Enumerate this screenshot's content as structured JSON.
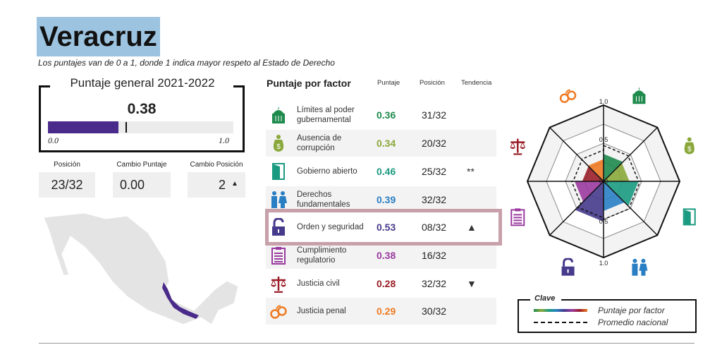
{
  "header": {
    "title": "Veracruz",
    "subtitle": "Los puntajes van de 0 a 1, donde 1 indica mayor respeto al Estado de Derecho"
  },
  "general": {
    "title": "Puntaje general 2021-2022",
    "score": "0.38",
    "score_value": 0.38,
    "national_marker": 0.42,
    "min_label": "0.0",
    "max_label": "1.0"
  },
  "stats": [
    {
      "label": "Posición",
      "value": "23/32"
    },
    {
      "label": "Cambio Puntaje",
      "value": "0.00"
    },
    {
      "label": "Cambio Posición",
      "value": "2",
      "trend": "▲"
    }
  ],
  "factors": {
    "title": "Puntaje por factor",
    "columns": [
      "Puntaje",
      "Posición",
      "Tendencia"
    ],
    "rows": [
      {
        "name": "Límites al poder gubernamental",
        "score": "0.36",
        "position": "31/32",
        "trend": "",
        "color": "#1e8a4c",
        "icon": "capitol-icon"
      },
      {
        "name": "Ausencia de corrupción",
        "score": "0.34",
        "position": "20/32",
        "trend": "",
        "color": "#8aa83a",
        "icon": "money-bag-icon"
      },
      {
        "name": "Gobierno abierto",
        "score": "0.46",
        "position": "25/32",
        "trend": "**",
        "color": "#1a9a80",
        "icon": "door-icon"
      },
      {
        "name": "Derechos fundamentales",
        "score": "0.39",
        "position": "32/32",
        "trend": "",
        "color": "#2a7fc4",
        "icon": "people-icon"
      },
      {
        "name": "Orden y seguridad",
        "score": "0.53",
        "position": "08/32",
        "trend": "▲",
        "color": "#463a8c",
        "icon": "padlock-icon"
      },
      {
        "name": "Cumplimiento regulatorio",
        "score": "0.38",
        "position": "16/32",
        "trend": "",
        "color": "#9a3aa0",
        "icon": "clipboard-icon"
      },
      {
        "name": "Justicia civil",
        "score": "0.28",
        "position": "32/32",
        "trend": "▼",
        "color": "#9a1e28",
        "icon": "scales-icon"
      },
      {
        "name": "Justicia penal",
        "score": "0.29",
        "position": "30/32",
        "trend": "",
        "color": "#ee7a22",
        "icon": "handcuffs-icon"
      }
    ]
  },
  "chart_data": {
    "type": "radar",
    "categories": [
      "Límites al poder gubernamental",
      "Ausencia de corrupción",
      "Gobierno abierto",
      "Derechos fundamentales",
      "Orden y seguridad",
      "Cumplimiento regulatorio",
      "Justicia civil",
      "Justicia penal"
    ],
    "series": [
      {
        "name": "Puntaje por factor",
        "values": [
          0.36,
          0.34,
          0.46,
          0.39,
          0.53,
          0.38,
          0.28,
          0.29
        ]
      },
      {
        "name": "Promedio nacional",
        "values": [
          0.47,
          0.46,
          0.48,
          0.5,
          0.48,
          0.42,
          0.4,
          0.41
        ]
      }
    ],
    "tick_labels": [
      "0.0",
      "0.5",
      "1.0"
    ],
    "range": [
      0,
      1
    ]
  },
  "legend": {
    "title": "Clave",
    "items": [
      "Puntaje por factor",
      "Promedio nacional"
    ]
  },
  "map": {
    "highlight_color": "#4a2a8a"
  }
}
